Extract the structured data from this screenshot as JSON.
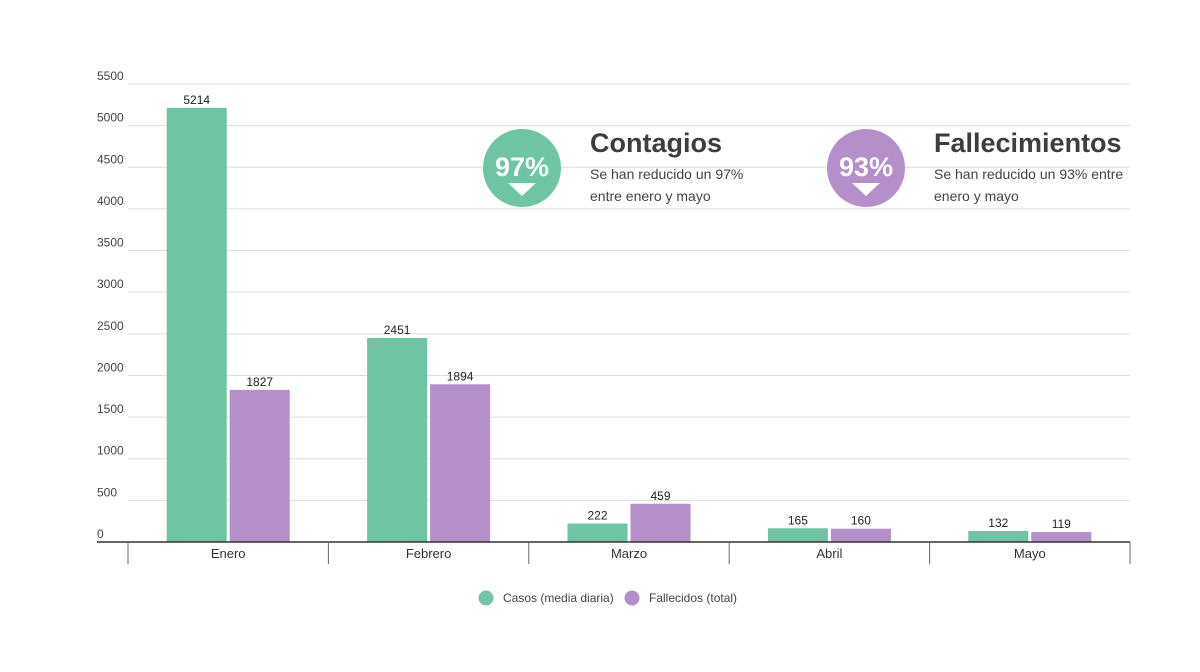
{
  "chart_data": {
    "type": "bar",
    "categories": [
      "Enero",
      "Febrero",
      "Marzo",
      "Abril",
      "Mayo"
    ],
    "series": [
      {
        "name": "Casos (media diaria)",
        "color": "#6fc5a3",
        "values": [
          5214,
          2451,
          222,
          165,
          132
        ]
      },
      {
        "name": "Fallecidos (total)",
        "color": "#b48fc9",
        "values": [
          1827,
          1894,
          459,
          160,
          119
        ]
      }
    ],
    "yticks": [
      0,
      500,
      1000,
      1500,
      2000,
      2500,
      3000,
      3500,
      4000,
      4500,
      5000,
      5500
    ],
    "ylim": [
      0,
      5500
    ],
    "grid": true,
    "legend": "bottom-center",
    "annotations": [
      {
        "percent": "97%",
        "title": "Contagios",
        "lines": [
          "Se han reducido un 97%",
          "entre enero y mayo"
        ],
        "color": "#6fc5a3",
        "icon": "down-arrow-icon"
      },
      {
        "percent": "93%",
        "title": "Fallecimientos",
        "lines": [
          "Se han reducido un 93% entre",
          "enero y mayo"
        ],
        "color": "#b48fc9",
        "icon": "down-arrow-icon"
      }
    ]
  }
}
